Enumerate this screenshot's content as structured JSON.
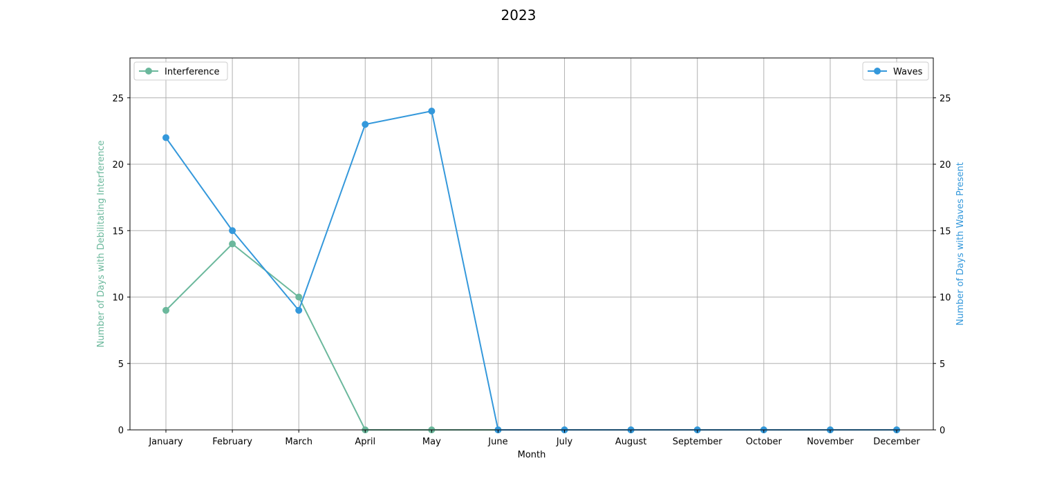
{
  "chart_data": {
    "type": "line",
    "title": "2023",
    "xlabel": "Month",
    "ylabel_left": "Number of Days with Debilitating Interference",
    "ylabel_right": "Number of Days with Waves Present",
    "categories": [
      "January",
      "February",
      "March",
      "April",
      "May",
      "June",
      "July",
      "August",
      "September",
      "October",
      "November",
      "December"
    ],
    "ylim": [
      0,
      28
    ],
    "yticks": [
      0,
      5,
      10,
      15,
      20,
      25
    ],
    "grid": true,
    "series": [
      {
        "name": "Interference",
        "axis": "left",
        "color": "#6bb89c",
        "legend_position": "upper-left",
        "values": [
          9,
          14,
          10,
          0,
          0,
          0,
          0,
          0,
          0,
          0,
          0,
          0
        ]
      },
      {
        "name": "Waves",
        "axis": "right",
        "color": "#3498db",
        "legend_position": "upper-right",
        "values": [
          22,
          15,
          9,
          23,
          24,
          0,
          0,
          0,
          0,
          0,
          0,
          0
        ]
      }
    ]
  }
}
